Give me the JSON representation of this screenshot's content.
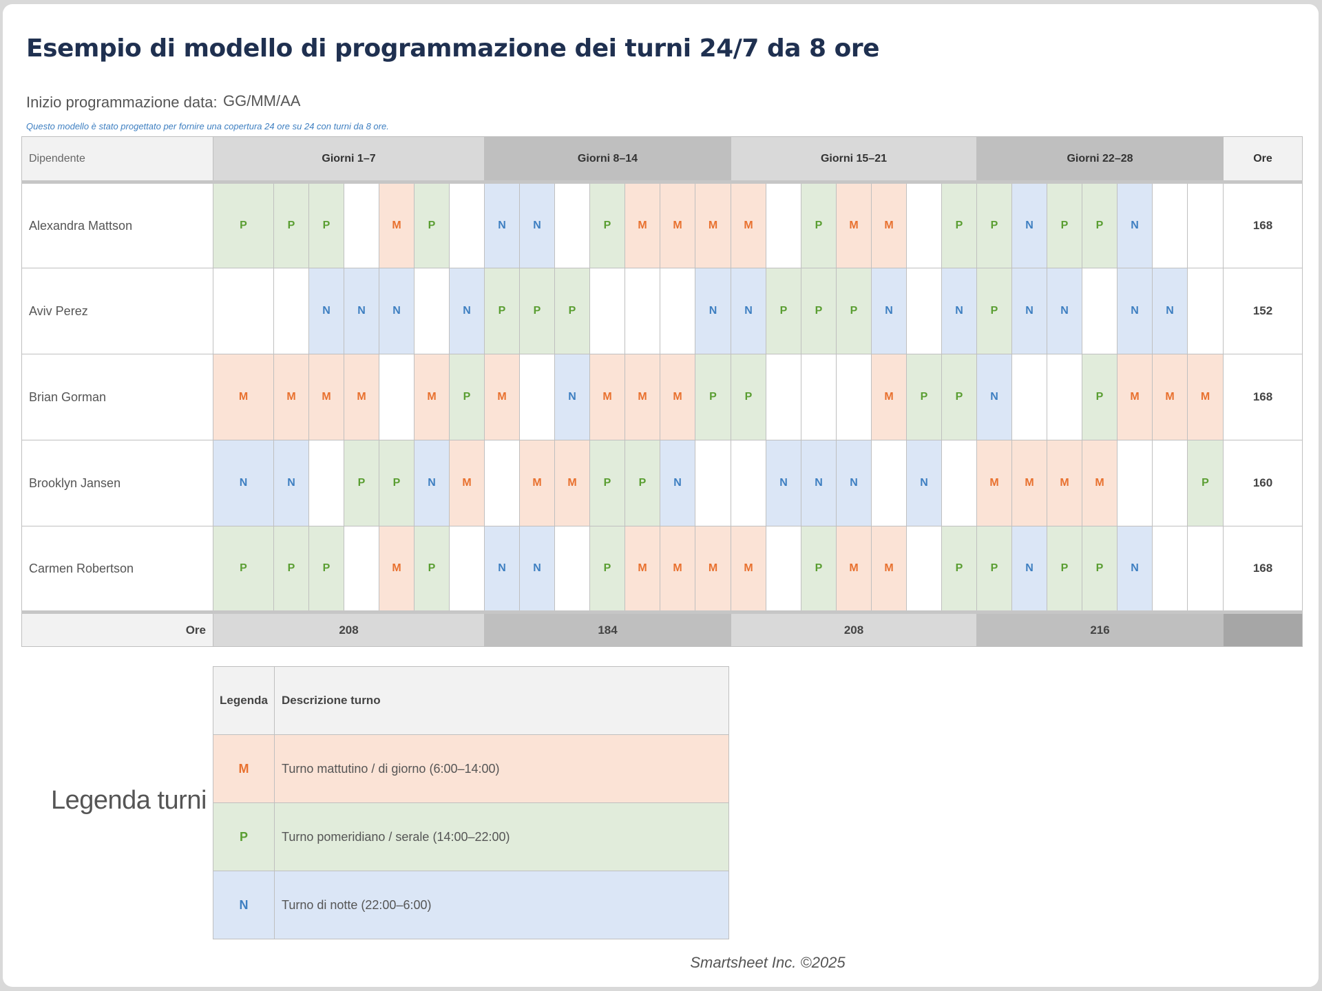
{
  "title": "Esempio di modello di programmazione dei turni 24/7 da 8 ore",
  "start_date": {
    "label": "Inizio programmazione data:",
    "value": "GG/MM/AA"
  },
  "note": "Questo modello è stato progettato per fornire una copertura 24 ore su 24 con turni da 8 ore.",
  "schedule": {
    "employee_header": "Dipendente",
    "groups": [
      "Giorni 1–7",
      "Giorni 8–14",
      "Giorni 15–21",
      "Giorni 22–28"
    ],
    "hours_header": "Ore",
    "rows": [
      {
        "name": "Alexandra Mattson",
        "shifts": "PPP MP NN PMMMM PMM PPNPPN",
        "hours": "168"
      },
      {
        "name": "Aviv Perez",
        "shifts": "  NNN NPPP   NNPPPN NPNN NN ",
        "hours": "152"
      },
      {
        "name": "Brian Gorman",
        "shifts": "MMMM MPM NMMMPP   MPPN  PMMM",
        "hours": "168"
      },
      {
        "name": "Brooklyn Jansen",
        "shifts": "NN PPNM MMPPN  NNN N MMMM  P",
        "hours": "160"
      },
      {
        "name": "Carmen Robertson",
        "shifts": "PPP MP NN PMMMM PMM PPNPPN",
        "hours": "168"
      }
    ],
    "footer_label": "Ore",
    "footer_totals": [
      "208",
      "184",
      "208",
      "216"
    ]
  },
  "legend": {
    "title": "Legenda turni",
    "col_code": "Legenda",
    "col_desc": "Descrizione turno",
    "items": [
      {
        "code": "M",
        "desc": "Turno mattutino / di giorno (6:00–14:00)"
      },
      {
        "code": "P",
        "desc": "Turno pomeridiano / serale (14:00–22:00)"
      },
      {
        "code": "N",
        "desc": "Turno di notte (22:00–6:00)"
      }
    ]
  },
  "footer": "Smartsheet Inc. ©2025",
  "colors": {
    "M_bg": "#fbe3d6",
    "M_fg": "#e8712f",
    "P_bg": "#e1ecdb",
    "P_fg": "#5a9e32",
    "N_bg": "#dbe6f6",
    "N_fg": "#3e7fc1"
  }
}
